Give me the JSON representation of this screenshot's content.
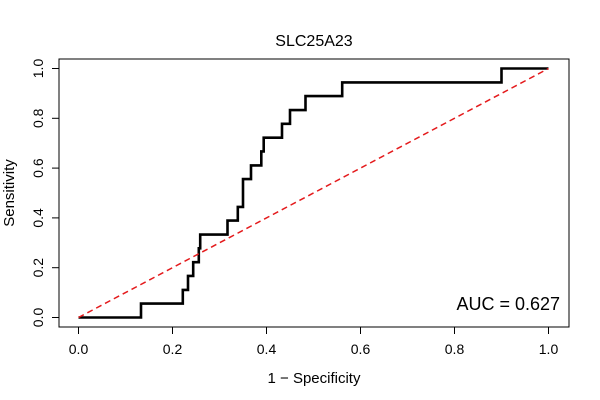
{
  "chart_data": {
    "type": "line",
    "title": "SLC25A23",
    "xlabel": "1 − Specificity",
    "ylabel": "Sensitivity",
    "xlim": [
      0,
      1
    ],
    "ylim": [
      0,
      1
    ],
    "x_ticks": [
      "0.0",
      "0.2",
      "0.4",
      "0.6",
      "0.8",
      "1.0"
    ],
    "y_ticks": [
      "0.0",
      "0.2",
      "0.4",
      "0.6",
      "0.8",
      "1.0"
    ],
    "annotation": "AUC = 0.627",
    "series": [
      {
        "name": "ROC curve",
        "color": "#000000",
        "x": [
          0,
          0.133,
          0.133,
          0.222,
          0.222,
          0.233,
          0.233,
          0.244,
          0.244,
          0.256,
          0.256,
          0.259,
          0.259,
          0.261,
          0.261,
          0.317,
          0.317,
          0.339,
          0.339,
          0.35,
          0.35,
          0.356,
          0.356,
          0.367,
          0.367,
          0.389,
          0.389,
          0.394,
          0.394,
          0.433,
          0.433,
          0.45,
          0.45,
          0.483,
          0.483,
          0.561,
          0.561,
          0.9,
          0.9,
          1.0
        ],
        "y": [
          0,
          0,
          0.056,
          0.056,
          0.111,
          0.111,
          0.167,
          0.167,
          0.222,
          0.222,
          0.278,
          0.278,
          0.333,
          0.333,
          0.333,
          0.333,
          0.389,
          0.389,
          0.444,
          0.444,
          0.556,
          0.556,
          0.556,
          0.556,
          0.611,
          0.611,
          0.667,
          0.667,
          0.722,
          0.722,
          0.778,
          0.778,
          0.833,
          0.833,
          0.889,
          0.889,
          0.944,
          0.944,
          1.0,
          1.0
        ]
      },
      {
        "name": "Reference line",
        "color": "#e41a1c",
        "style": "dashed",
        "x": [
          0,
          1
        ],
        "y": [
          0,
          1
        ]
      }
    ]
  }
}
